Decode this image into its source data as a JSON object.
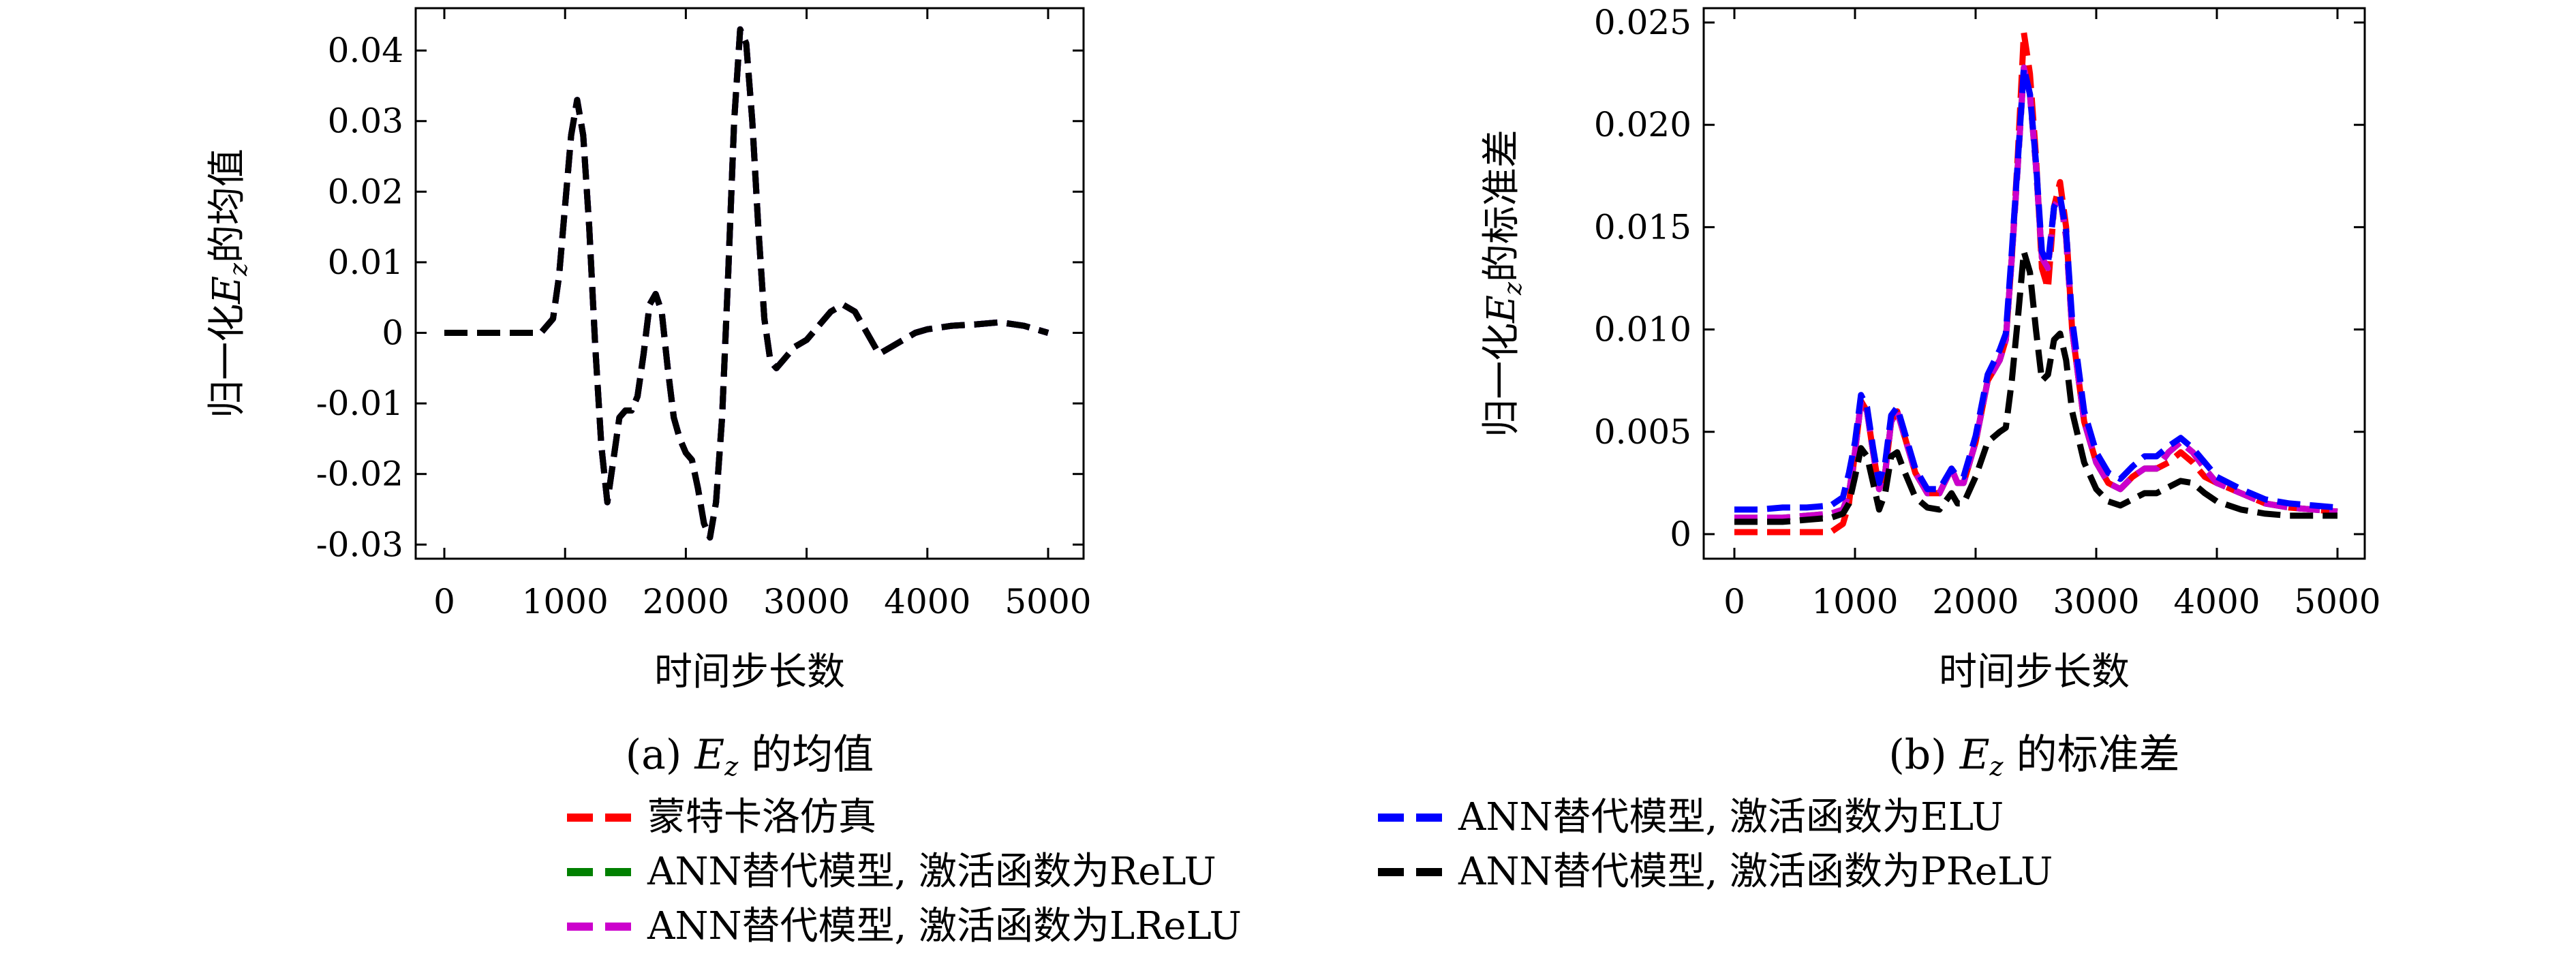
{
  "chart_data": [
    {
      "type": "line",
      "caption": "(a) E_z 的均值",
      "xlabel": "时间步长数",
      "ylabel": "归一化E_z的均值",
      "xlim": [
        0,
        5000
      ],
      "ylim": [
        -0.032,
        0.046
      ],
      "xticks": [
        "0",
        "1000",
        "2000",
        "3000",
        "4000",
        "5000"
      ],
      "yticks": [
        "0.04",
        "0.03",
        "0.02",
        "0.01",
        "0",
        "-0.01",
        "-0.02",
        "-0.03"
      ],
      "ytick_values": [
        0.04,
        0.03,
        0.02,
        0.01,
        0,
        -0.01,
        -0.02,
        -0.03
      ],
      "x": [
        0,
        200,
        400,
        600,
        800,
        900,
        950,
        1000,
        1050,
        1100,
        1150,
        1200,
        1250,
        1300,
        1350,
        1400,
        1450,
        1500,
        1550,
        1600,
        1650,
        1700,
        1750,
        1800,
        1850,
        1900,
        1950,
        2000,
        2050,
        2100,
        2150,
        2200,
        2250,
        2300,
        2350,
        2400,
        2450,
        2500,
        2550,
        2600,
        2650,
        2700,
        2750,
        2800,
        2850,
        2900,
        3000,
        3100,
        3200,
        3300,
        3400,
        3500,
        3600,
        3700,
        3800,
        3900,
        4000,
        4200,
        4400,
        4600,
        4800,
        5000
      ],
      "series": [
        {
          "name": "蒙特卡洛仿真",
          "color": "#ff0000",
          "values": [
            0,
            0,
            0,
            0,
            0,
            0.002,
            0.008,
            0.018,
            0.028,
            0.033,
            0.028,
            0.015,
            -0.002,
            -0.016,
            -0.024,
            -0.018,
            -0.012,
            -0.011,
            -0.011,
            -0.009,
            -0.003,
            0.004,
            0.0055,
            0.003,
            -0.005,
            -0.012,
            -0.015,
            -0.017,
            -0.018,
            -0.022,
            -0.027,
            -0.029,
            -0.024,
            -0.012,
            0.008,
            0.03,
            0.043,
            0.041,
            0.03,
            0.015,
            0.002,
            -0.004,
            -0.005,
            -0.004,
            -0.003,
            -0.002,
            -0.001,
            0.001,
            0.003,
            0.004,
            0.003,
            0.0,
            -0.003,
            -0.002,
            -0.001,
            0.0,
            0.0005,
            0.001,
            0.0012,
            0.0015,
            0.001,
            0.0
          ]
        },
        {
          "name": "ANN替代模型, 激活函数为ReLU",
          "color": "#008000",
          "values": [
            0,
            0,
            0,
            0,
            0,
            0.002,
            0.008,
            0.018,
            0.028,
            0.033,
            0.028,
            0.015,
            -0.002,
            -0.016,
            -0.024,
            -0.018,
            -0.012,
            -0.011,
            -0.011,
            -0.009,
            -0.003,
            0.004,
            0.0055,
            0.003,
            -0.005,
            -0.012,
            -0.015,
            -0.017,
            -0.018,
            -0.022,
            -0.027,
            -0.029,
            -0.024,
            -0.012,
            0.008,
            0.03,
            0.043,
            0.041,
            0.03,
            0.015,
            0.002,
            -0.004,
            -0.005,
            -0.004,
            -0.003,
            -0.002,
            -0.001,
            0.001,
            0.003,
            0.004,
            0.003,
            0.0,
            -0.003,
            -0.002,
            -0.001,
            0.0,
            0.0005,
            0.001,
            0.0012,
            0.0015,
            0.001,
            0.0
          ]
        },
        {
          "name": "ANN替代模型, 激活函数为LReLU",
          "color": "#cc00cc",
          "values": [
            0,
            0,
            0,
            0,
            0,
            0.002,
            0.008,
            0.018,
            0.028,
            0.033,
            0.028,
            0.015,
            -0.002,
            -0.016,
            -0.024,
            -0.018,
            -0.012,
            -0.011,
            -0.011,
            -0.009,
            -0.003,
            0.004,
            0.0055,
            0.003,
            -0.005,
            -0.012,
            -0.015,
            -0.017,
            -0.018,
            -0.022,
            -0.027,
            -0.029,
            -0.024,
            -0.012,
            0.008,
            0.03,
            0.043,
            0.041,
            0.03,
            0.015,
            0.002,
            -0.004,
            -0.005,
            -0.004,
            -0.003,
            -0.002,
            -0.001,
            0.001,
            0.003,
            0.004,
            0.003,
            0.0,
            -0.003,
            -0.002,
            -0.001,
            0.0,
            0.0005,
            0.001,
            0.0012,
            0.0015,
            0.001,
            0.0
          ]
        },
        {
          "name": "ANN替代模型, 激活函数为ELU",
          "color": "#0000ff",
          "values": [
            0,
            0,
            0,
            0,
            0,
            0.002,
            0.008,
            0.018,
            0.028,
            0.033,
            0.028,
            0.015,
            -0.002,
            -0.016,
            -0.024,
            -0.018,
            -0.012,
            -0.011,
            -0.011,
            -0.009,
            -0.003,
            0.004,
            0.0055,
            0.003,
            -0.005,
            -0.012,
            -0.015,
            -0.017,
            -0.018,
            -0.022,
            -0.027,
            -0.029,
            -0.024,
            -0.012,
            0.008,
            0.03,
            0.043,
            0.041,
            0.03,
            0.015,
            0.002,
            -0.004,
            -0.005,
            -0.004,
            -0.003,
            -0.002,
            -0.001,
            0.001,
            0.003,
            0.004,
            0.003,
            0.0,
            -0.003,
            -0.002,
            -0.001,
            0.0,
            0.0005,
            0.001,
            0.0012,
            0.0015,
            0.001,
            0.0
          ]
        },
        {
          "name": "ANN替代模型, 激活函数为PReLU",
          "color": "#000000",
          "values": [
            0,
            0,
            0,
            0,
            0,
            0.002,
            0.008,
            0.018,
            0.028,
            0.033,
            0.028,
            0.015,
            -0.002,
            -0.016,
            -0.024,
            -0.018,
            -0.012,
            -0.011,
            -0.011,
            -0.009,
            -0.003,
            0.004,
            0.0055,
            0.003,
            -0.005,
            -0.012,
            -0.015,
            -0.017,
            -0.018,
            -0.022,
            -0.027,
            -0.029,
            -0.024,
            -0.012,
            0.008,
            0.03,
            0.043,
            0.041,
            0.03,
            0.015,
            0.002,
            -0.004,
            -0.005,
            -0.004,
            -0.003,
            -0.002,
            -0.001,
            0.001,
            0.003,
            0.004,
            0.003,
            0.0,
            -0.003,
            -0.002,
            -0.001,
            0.0,
            0.0005,
            0.001,
            0.0012,
            0.0015,
            0.001,
            0.0
          ]
        }
      ]
    },
    {
      "type": "line",
      "caption": "(b) E_z 的标准差",
      "xlabel": "时间步长数",
      "ylabel": "归一化E_z的标准差",
      "xlim": [
        0,
        5000
      ],
      "ylim": [
        -0.0012,
        0.0257
      ],
      "xticks": [
        "0",
        "1000",
        "2000",
        "3000",
        "4000",
        "5000"
      ],
      "yticks": [
        "0.025",
        "0.020",
        "0.015",
        "0.010",
        "0.005",
        "0"
      ],
      "ytick_values": [
        0.025,
        0.02,
        0.015,
        0.01,
        0.005,
        0
      ],
      "x": [
        0,
        200,
        400,
        600,
        800,
        900,
        950,
        1000,
        1050,
        1100,
        1150,
        1200,
        1250,
        1300,
        1350,
        1400,
        1500,
        1600,
        1700,
        1800,
        1850,
        1900,
        2000,
        2100,
        2200,
        2250,
        2300,
        2350,
        2400,
        2450,
        2500,
        2550,
        2600,
        2650,
        2700,
        2750,
        2800,
        2900,
        3000,
        3100,
        3200,
        3300,
        3400,
        3500,
        3600,
        3700,
        3800,
        3900,
        4000,
        4200,
        4400,
        4600,
        4800,
        5000
      ],
      "series": [
        {
          "name": "蒙特卡洛仿真",
          "color": "#ff0000",
          "values": [
            0.0001,
            0.0001,
            0.0001,
            0.0001,
            0.0001,
            0.0005,
            0.0015,
            0.004,
            0.0065,
            0.006,
            0.004,
            0.0022,
            0.003,
            0.0055,
            0.006,
            0.005,
            0.003,
            0.002,
            0.002,
            0.0032,
            0.0025,
            0.0025,
            0.0045,
            0.0075,
            0.0085,
            0.0095,
            0.0135,
            0.0185,
            0.0245,
            0.0225,
            0.0185,
            0.013,
            0.012,
            0.016,
            0.0172,
            0.015,
            0.01,
            0.0055,
            0.0035,
            0.0025,
            0.0022,
            0.0028,
            0.0032,
            0.0032,
            0.0035,
            0.004,
            0.0035,
            0.0028,
            0.0025,
            0.002,
            0.0015,
            0.0013,
            0.0012,
            0.0011
          ]
        },
        {
          "name": "ANN替代模型, 激活函数为ReLU",
          "color": "#008000",
          "values": [
            0.0008,
            0.0008,
            0.0008,
            0.0009,
            0.001,
            0.0012,
            0.002,
            0.004,
            0.0065,
            0.006,
            0.004,
            0.0022,
            0.003,
            0.0055,
            0.006,
            0.005,
            0.003,
            0.002,
            0.002,
            0.0032,
            0.0025,
            0.0025,
            0.0045,
            0.0075,
            0.0085,
            0.0095,
            0.0135,
            0.018,
            0.0228,
            0.0215,
            0.018,
            0.0135,
            0.013,
            0.016,
            0.0165,
            0.0145,
            0.01,
            0.0055,
            0.0035,
            0.0025,
            0.0022,
            0.0028,
            0.0032,
            0.0032,
            0.004,
            0.0045,
            0.004,
            0.0032,
            0.0025,
            0.002,
            0.0015,
            0.0013,
            0.0012,
            0.0011
          ]
        },
        {
          "name": "ANN替代模型, 激活函数为LReLU",
          "color": "#cc00cc",
          "values": [
            0.0008,
            0.0008,
            0.0008,
            0.0009,
            0.001,
            0.0012,
            0.002,
            0.004,
            0.0065,
            0.006,
            0.004,
            0.0022,
            0.003,
            0.0055,
            0.006,
            0.005,
            0.003,
            0.002,
            0.002,
            0.0032,
            0.0025,
            0.0025,
            0.0045,
            0.0075,
            0.0085,
            0.0095,
            0.0135,
            0.018,
            0.0228,
            0.0215,
            0.018,
            0.0135,
            0.013,
            0.016,
            0.0165,
            0.0145,
            0.01,
            0.0055,
            0.0035,
            0.0025,
            0.0022,
            0.0028,
            0.0032,
            0.0032,
            0.004,
            0.0045,
            0.004,
            0.0032,
            0.0025,
            0.002,
            0.0015,
            0.0013,
            0.0012,
            0.0011
          ]
        },
        {
          "name": "ANN替代模型, 激活函数为ELU",
          "color": "#0000ff",
          "values": [
            0.0012,
            0.0012,
            0.0013,
            0.0013,
            0.0014,
            0.0018,
            0.003,
            0.0045,
            0.0068,
            0.0062,
            0.0042,
            0.0025,
            0.0035,
            0.0058,
            0.0062,
            0.0052,
            0.0032,
            0.0022,
            0.0022,
            0.0032,
            0.0028,
            0.0028,
            0.0048,
            0.0078,
            0.009,
            0.0098,
            0.0138,
            0.0182,
            0.0228,
            0.0215,
            0.0182,
            0.0138,
            0.0132,
            0.016,
            0.0165,
            0.0148,
            0.0105,
            0.006,
            0.004,
            0.003,
            0.0027,
            0.0033,
            0.0038,
            0.0038,
            0.0043,
            0.0047,
            0.0042,
            0.0035,
            0.0028,
            0.0022,
            0.0017,
            0.0015,
            0.0014,
            0.0013
          ]
        },
        {
          "name": "ANN替代模型, 激活函数为PReLU",
          "color": "#000000",
          "values": [
            0.0006,
            0.0006,
            0.0006,
            0.0007,
            0.0008,
            0.001,
            0.0015,
            0.0028,
            0.0042,
            0.0038,
            0.0025,
            0.0012,
            0.002,
            0.0038,
            0.004,
            0.0032,
            0.0018,
            0.0013,
            0.0012,
            0.002,
            0.0015,
            0.0015,
            0.0028,
            0.0045,
            0.005,
            0.0052,
            0.0075,
            0.0105,
            0.0138,
            0.0128,
            0.01,
            0.0075,
            0.0078,
            0.0095,
            0.0098,
            0.0085,
            0.006,
            0.0035,
            0.0022,
            0.0016,
            0.0014,
            0.0017,
            0.002,
            0.002,
            0.0023,
            0.0026,
            0.0025,
            0.002,
            0.0016,
            0.0012,
            0.001,
            0.0009,
            0.0009,
            0.0009
          ]
        }
      ]
    }
  ],
  "panel_a": {
    "caption_prefix": "(a)",
    "caption_var": "E",
    "caption_sub": "z",
    "caption_suffix": "的均值",
    "ylabel_pre": "归一化",
    "ylabel_var": "E",
    "ylabel_sub": "z",
    "ylabel_post": "的均值",
    "xlabel": "时间步长数"
  },
  "panel_b": {
    "caption_prefix": "(b)",
    "caption_var": "E",
    "caption_sub": "z",
    "caption_suffix": "的标准差",
    "ylabel_pre": "归一化",
    "ylabel_var": "E",
    "ylabel_sub": "z",
    "ylabel_post": "的标准差",
    "xlabel": "时间步长数"
  },
  "legend": {
    "items": [
      {
        "label": "蒙特卡洛仿真",
        "color": "#ff0000"
      },
      {
        "label": "ANN替代模型, 激活函数为ELU",
        "color": "#0000ff"
      },
      {
        "label": "ANN替代模型, 激活函数为ReLU",
        "color": "#008000"
      },
      {
        "label": "ANN替代模型, 激活函数为PReLU",
        "color": "#000000"
      },
      {
        "label": "ANN替代模型, 激活函数为LReLU",
        "color": "#cc00cc"
      }
    ]
  }
}
